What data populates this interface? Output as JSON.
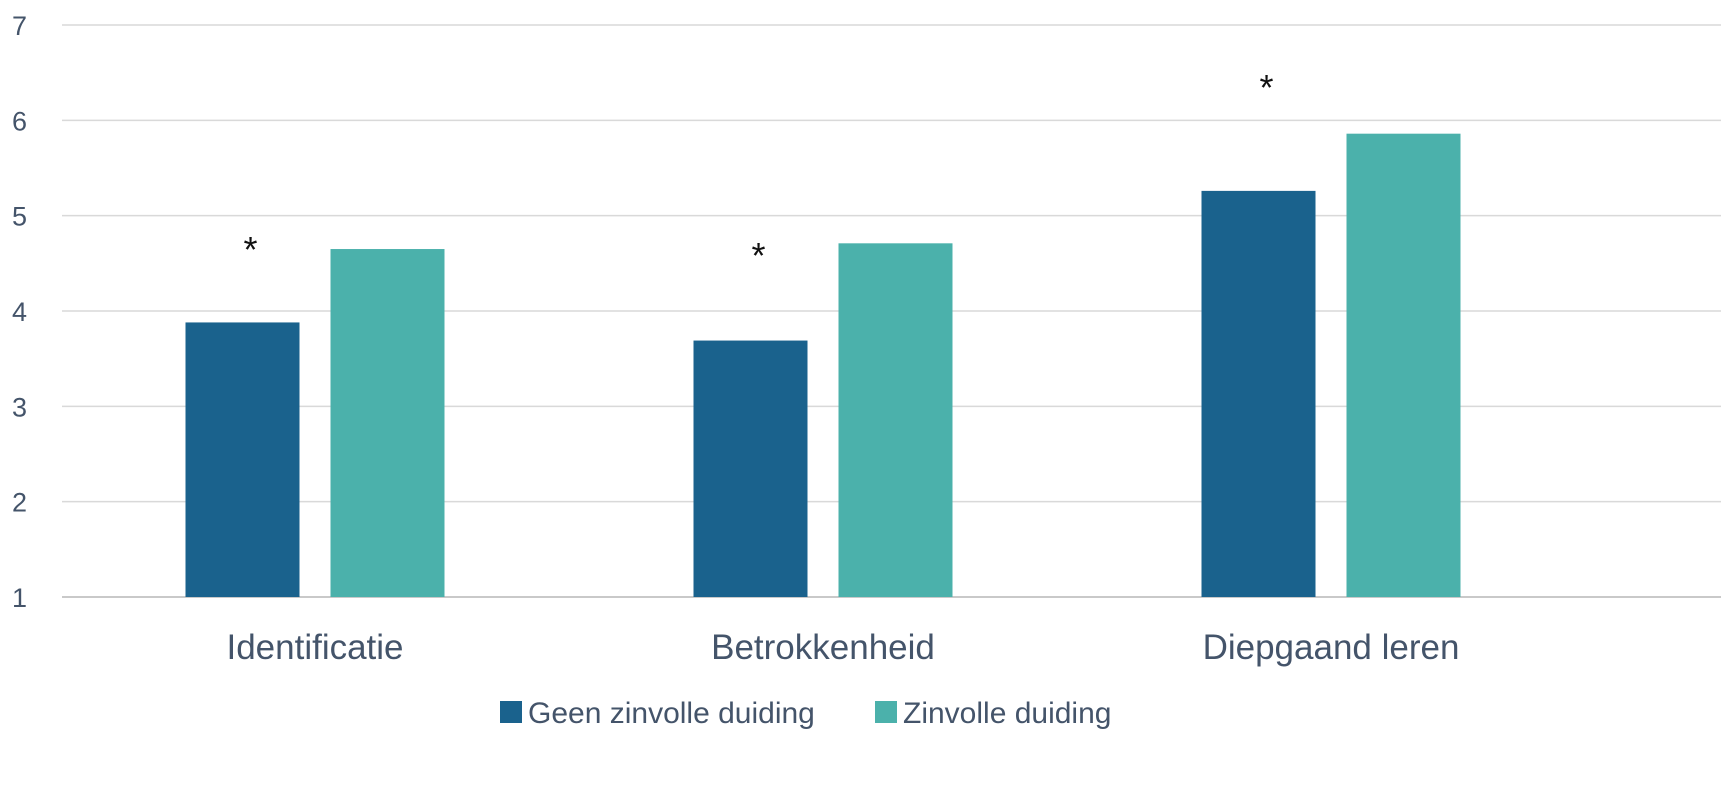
{
  "chart_data": {
    "type": "bar",
    "categories": [
      "Identificatie",
      "Betrokkenheid",
      "Diepgaand leren"
    ],
    "series": [
      {
        "name": "Geen zinvolle duiding",
        "values": [
          3.88,
          3.69,
          5.26
        ],
        "color": "#1a628d"
      },
      {
        "name": "Zinvolle duiding",
        "values": [
          4.65,
          4.71,
          5.86
        ],
        "color": "#4bb1ab"
      }
    ],
    "annotations": [
      "*",
      "*",
      "*"
    ],
    "yticks": [
      "1",
      "2",
      "3",
      "4",
      "5",
      "6",
      "7"
    ],
    "ylim": [
      1,
      7
    ],
    "grid": true,
    "legend_position": "bottom"
  }
}
